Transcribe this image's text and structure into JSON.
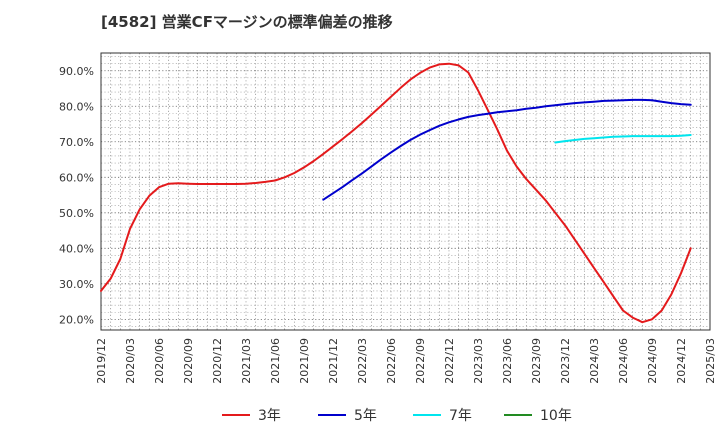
{
  "title": "[4582]  営業CFマージンの標準偏差の推移",
  "chart_data": {
    "type": "line",
    "title": "[4582]  営業CFマージンの標準偏差の推移",
    "xlabel": "",
    "ylabel": "",
    "x_ticks": [
      "2019/12",
      "2020/03",
      "2020/06",
      "2020/09",
      "2020/12",
      "2021/03",
      "2021/06",
      "2021/09",
      "2021/12",
      "2022/03",
      "2022/06",
      "2022/09",
      "2022/12",
      "2023/03",
      "2023/06",
      "2023/09",
      "2023/12",
      "2024/03",
      "2024/06",
      "2024/09",
      "2024/12",
      "2025/03"
    ],
    "y_ticks": [
      "20.0%",
      "30.0%",
      "40.0%",
      "50.0%",
      "60.0%",
      "70.0%",
      "80.0%",
      "90.0%"
    ],
    "ylim": [
      17,
      95
    ],
    "grid": true,
    "legend_position": "bottom",
    "series": [
      {
        "name": "3年",
        "color": "#e41a1c",
        "points": [
          [
            "2019/12",
            28.0
          ],
          [
            "2020/01",
            31.5
          ],
          [
            "2020/02",
            37.0
          ],
          [
            "2020/03",
            45.5
          ],
          [
            "2020/04",
            51.0
          ],
          [
            "2020/05",
            54.8
          ],
          [
            "2020/06",
            57.2
          ],
          [
            "2020/07",
            58.2
          ],
          [
            "2020/08",
            58.3
          ],
          [
            "2020/09",
            58.2
          ],
          [
            "2020/10",
            58.1
          ],
          [
            "2020/11",
            58.1
          ],
          [
            "2020/12",
            58.1
          ],
          [
            "2021/01",
            58.1
          ],
          [
            "2021/02",
            58.1
          ],
          [
            "2021/03",
            58.2
          ],
          [
            "2021/04",
            58.4
          ],
          [
            "2021/05",
            58.7
          ],
          [
            "2021/06",
            59.1
          ],
          [
            "2021/07",
            60.0
          ],
          [
            "2021/08",
            61.2
          ],
          [
            "2021/09",
            62.8
          ],
          [
            "2021/10",
            64.6
          ],
          [
            "2021/11",
            66.6
          ],
          [
            "2021/12",
            68.7
          ],
          [
            "2022/01",
            70.8
          ],
          [
            "2022/02",
            73.0
          ],
          [
            "2022/03",
            75.3
          ],
          [
            "2022/04",
            77.7
          ],
          [
            "2022/05",
            80.2
          ],
          [
            "2022/06",
            82.7
          ],
          [
            "2022/07",
            85.2
          ],
          [
            "2022/08",
            87.5
          ],
          [
            "2022/09",
            89.4
          ],
          [
            "2022/10",
            90.9
          ],
          [
            "2022/11",
            91.8
          ],
          [
            "2022/12",
            92.0
          ],
          [
            "2023/01",
            91.5
          ],
          [
            "2023/02",
            89.5
          ],
          [
            "2023/03",
            84.5
          ],
          [
            "2023/04",
            79.0
          ],
          [
            "2023/05",
            73.5
          ],
          [
            "2023/06",
            67.5
          ],
          [
            "2023/07",
            63.0
          ],
          [
            "2023/08",
            59.5
          ],
          [
            "2023/09",
            56.5
          ],
          [
            "2023/10",
            53.5
          ],
          [
            "2023/11",
            50.0
          ],
          [
            "2023/12",
            46.5
          ],
          [
            "2024/01",
            42.5
          ],
          [
            "2024/02",
            38.5
          ],
          [
            "2024/03",
            34.5
          ],
          [
            "2024/04",
            30.5
          ],
          [
            "2024/05",
            26.5
          ],
          [
            "2024/06",
            22.5
          ],
          [
            "2024/07",
            20.5
          ],
          [
            "2024/08",
            19.2
          ],
          [
            "2024/09",
            20.0
          ],
          [
            "2024/10",
            22.5
          ],
          [
            "2024/11",
            27.0
          ],
          [
            "2024/12",
            33.0
          ],
          [
            "2025/01",
            40.0
          ]
        ]
      },
      {
        "name": "5年",
        "color": "#0000cc",
        "points": [
          [
            "2021/11",
            53.7
          ],
          [
            "2021/12",
            55.5
          ],
          [
            "2022/01",
            57.3
          ],
          [
            "2022/02",
            59.2
          ],
          [
            "2022/03",
            61.1
          ],
          [
            "2022/04",
            63.1
          ],
          [
            "2022/05",
            65.1
          ],
          [
            "2022/06",
            67.0
          ],
          [
            "2022/07",
            68.8
          ],
          [
            "2022/08",
            70.5
          ],
          [
            "2022/09",
            72.0
          ],
          [
            "2022/10",
            73.3
          ],
          [
            "2022/11",
            74.5
          ],
          [
            "2022/12",
            75.5
          ],
          [
            "2023/01",
            76.3
          ],
          [
            "2023/02",
            77.0
          ],
          [
            "2023/03",
            77.5
          ],
          [
            "2023/04",
            77.9
          ],
          [
            "2023/05",
            78.3
          ],
          [
            "2023/06",
            78.6
          ],
          [
            "2023/07",
            78.9
          ],
          [
            "2023/08",
            79.3
          ],
          [
            "2023/09",
            79.6
          ],
          [
            "2023/10",
            80.0
          ],
          [
            "2023/11",
            80.3
          ],
          [
            "2023/12",
            80.6
          ],
          [
            "2024/01",
            80.9
          ],
          [
            "2024/02",
            81.1
          ],
          [
            "2024/03",
            81.3
          ],
          [
            "2024/04",
            81.5
          ],
          [
            "2024/05",
            81.6
          ],
          [
            "2024/06",
            81.7
          ],
          [
            "2024/07",
            81.8
          ],
          [
            "2024/08",
            81.8
          ],
          [
            "2024/09",
            81.7
          ],
          [
            "2024/10",
            81.3
          ],
          [
            "2024/11",
            80.9
          ],
          [
            "2024/12",
            80.6
          ],
          [
            "2025/01",
            80.4
          ]
        ]
      },
      {
        "name": "7年",
        "color": "#00e5ee",
        "points": [
          [
            "2023/11",
            69.8
          ],
          [
            "2023/12",
            70.2
          ],
          [
            "2024/01",
            70.5
          ],
          [
            "2024/02",
            70.8
          ],
          [
            "2024/03",
            71.0
          ],
          [
            "2024/04",
            71.2
          ],
          [
            "2024/05",
            71.4
          ],
          [
            "2024/06",
            71.5
          ],
          [
            "2024/07",
            71.6
          ],
          [
            "2024/08",
            71.6
          ],
          [
            "2024/09",
            71.6
          ],
          [
            "2024/10",
            71.6
          ],
          [
            "2024/11",
            71.6
          ],
          [
            "2024/12",
            71.7
          ],
          [
            "2025/01",
            71.9
          ]
        ]
      },
      {
        "name": "10年",
        "color": "#228b22",
        "points": []
      }
    ]
  }
}
